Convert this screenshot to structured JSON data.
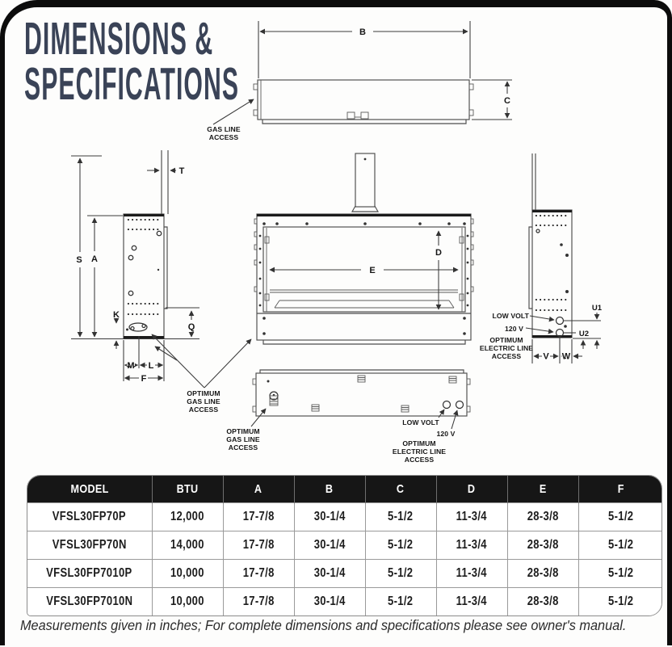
{
  "page": {
    "title_line1": "DIMENSIONS &",
    "title_line2": "SPECIFICATIONS",
    "footnote": "Measurements given in inches; For complete dimensions and specifications please see owner's manual.",
    "title_color": "#3a4357",
    "frame_color": "#0c0c0c",
    "table_header_bg": "#161616"
  },
  "diagram": {
    "dims": {
      "b": "B",
      "c": "C",
      "s": "S",
      "a": "A",
      "t": "T",
      "k": "K",
      "q": "Q",
      "m": "M",
      "l": "L",
      "f": "F",
      "d": "D",
      "e": "E",
      "u1": "U1",
      "u2": "U2",
      "v": "V",
      "w": "W"
    },
    "words": {
      "gas_line": "GAS LINE",
      "access": "ACCESS",
      "optimum": "OPTIMUM",
      "electric_line": "ELECTRIC LINE",
      "low_volt": "LOW VOLT",
      "volt_120": "120 V"
    }
  },
  "table": {
    "headers": [
      "MODEL",
      "BTU",
      "A",
      "B",
      "C",
      "D",
      "E",
      "F"
    ],
    "rows": [
      [
        "VFSL30FP70P",
        "12,000",
        "17-7/8",
        "30-1/4",
        "5-1/2",
        "11-3/4",
        "28-3/8",
        "5-1/2"
      ],
      [
        "VFSL30FP70N",
        "14,000",
        "17-7/8",
        "30-1/4",
        "5-1/2",
        "11-3/4",
        "28-3/8",
        "5-1/2"
      ],
      [
        "VFSL30FP7010P",
        "10,000",
        "17-7/8",
        "30-1/4",
        "5-1/2",
        "11-3/4",
        "28-3/8",
        "5-1/2"
      ],
      [
        "VFSL30FP7010N",
        "10,000",
        "17-7/8",
        "30-1/4",
        "5-1/2",
        "11-3/4",
        "28-3/8",
        "5-1/2"
      ]
    ]
  }
}
